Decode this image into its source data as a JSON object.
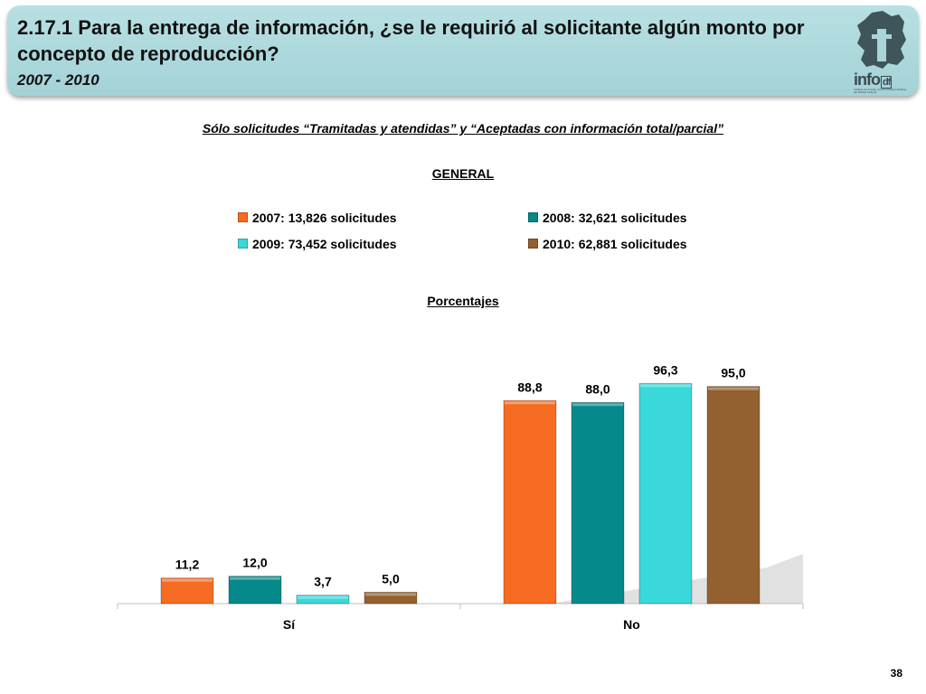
{
  "header": {
    "title": "2.17.1 Para la entrega de información, ¿se le requirió al solicitante algún monto por concepto de reproducción?",
    "years": "2007 - 2010",
    "logo_text": "info",
    "logo_suffix": "df",
    "logo_subtitle": "Instituto de Acceso a la Información Pública del Distrito Federal"
  },
  "subtitle": "Sólo solicitudes “Tramitadas y atendidas” y “Aceptadas con información total/parcial”",
  "general_label": "GENERAL",
  "porcentajes_label": "Porcentajes",
  "page_number": "38",
  "colors": {
    "accent_header": "#a8d5d9",
    "series_2007": "#f56b22",
    "series_2008": "#05898a",
    "series_2009": "#3ad8d8",
    "series_2010": "#93602f"
  },
  "chart_data": {
    "type": "bar",
    "categories": [
      "Sí",
      "No"
    ],
    "series": [
      {
        "name": "2007: 13,826 solicitudes",
        "values": [
          11.2,
          88.8
        ],
        "labels": [
          "11,2",
          "88,8"
        ],
        "color": "#f56b22"
      },
      {
        "name": "2008: 32,621 solicitudes",
        "values": [
          12.0,
          88.0
        ],
        "labels": [
          "12,0",
          "88,0"
        ],
        "color": "#05898a"
      },
      {
        "name": "2009: 73,452 solicitudes",
        "values": [
          3.7,
          96.3
        ],
        "labels": [
          "3,7",
          "96,3"
        ],
        "color": "#3ad8d8"
      },
      {
        "name": "2010: 62,881 solicitudes",
        "values": [
          5.0,
          95.0
        ],
        "labels": [
          "5,0",
          "95,0"
        ],
        "color": "#93602f"
      }
    ],
    "ylim": [
      0,
      100
    ],
    "grid": false,
    "legend_position": "top"
  }
}
